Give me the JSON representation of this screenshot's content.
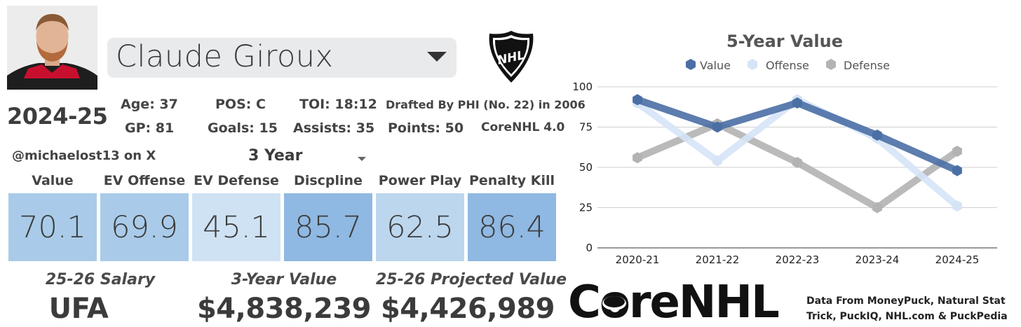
{
  "player": {
    "name": "Claude Giroux",
    "season": "2024-25",
    "handle": "@michaelost13 on X",
    "period": "3 Year"
  },
  "stats": {
    "age": "Age: 37",
    "pos": "POS: C",
    "toi": "TOI: 18:12",
    "drafted": "Drafted By PHI (No. 22) in 2006",
    "gp": "GP: 81",
    "goals": "Goals: 15",
    "assists": "Assists: 35",
    "points": "Points: 50",
    "version": "CoreNHL 4.0"
  },
  "metrics": [
    {
      "label": "Value",
      "value": "70.1",
      "color": "#a9cbe9"
    },
    {
      "label": "EV Offense",
      "value": "69.9",
      "color": "#a9cbe9"
    },
    {
      "label": "EV Defense",
      "value": "45.1",
      "color": "#cfe2f4"
    },
    {
      "label": "Discpline",
      "value": "85.7",
      "color": "#8fb8e2"
    },
    {
      "label": "Power Play",
      "value": "62.5",
      "color": "#bcd6ee"
    },
    {
      "label": "Penalty Kill",
      "value": "86.4",
      "color": "#8fb8e2"
    }
  ],
  "contract": {
    "salary_label": "25-26 Salary",
    "salary_value": "UFA",
    "three_year_label": "3-Year Value",
    "three_year_value": "$4,838,239",
    "projected_label": "25-26 Projected Value",
    "projected_value": "$4,426,989"
  },
  "branding": {
    "logo_text": "CoreNHL",
    "nhl_logo_text": "NHL",
    "credits_line1": "Data From MoneyPuck, Natural Stat",
    "credits_line2": "Trick, PuckIQ, NHL.com & PuckPedia"
  },
  "chart_data": {
    "type": "line",
    "title": "5-Year Value",
    "categories": [
      "2020-21",
      "2021-22",
      "2022-23",
      "2023-24",
      "2024-25"
    ],
    "ylim": [
      0,
      100
    ],
    "yticks": [
      0,
      25,
      50,
      75,
      100
    ],
    "grid": true,
    "legend": "top",
    "series": [
      {
        "name": "Value",
        "color": "#4a6fa5",
        "values": [
          92,
          75,
          90,
          70,
          48
        ]
      },
      {
        "name": "Offense",
        "color": "#d6e4f7",
        "values": [
          90,
          54,
          92,
          68,
          26
        ]
      },
      {
        "name": "Defense",
        "color": "#b3b3b3",
        "values": [
          56,
          77,
          53,
          25,
          60
        ]
      }
    ]
  }
}
